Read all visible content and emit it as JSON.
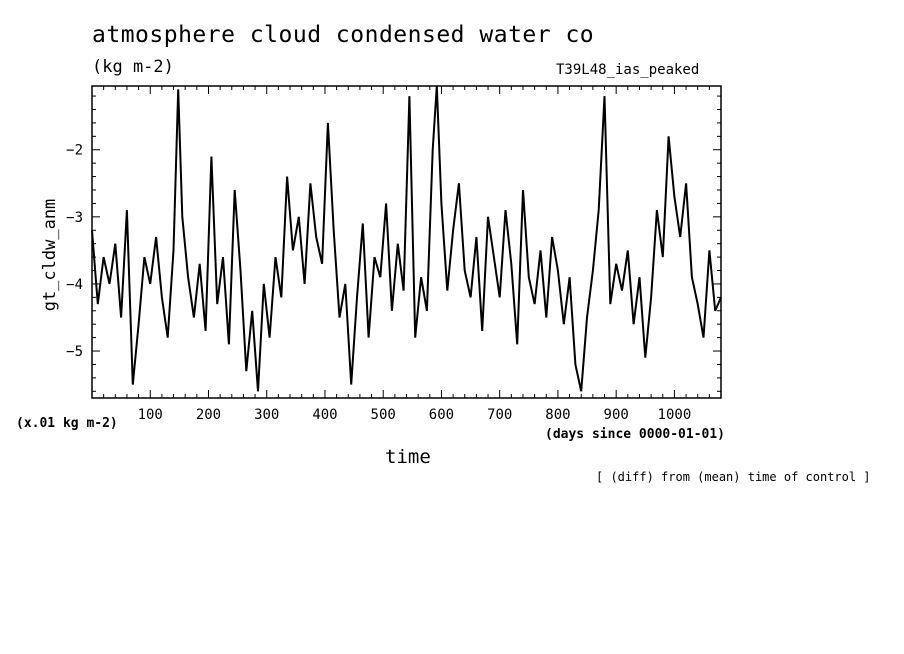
{
  "header": {
    "title": "atmosphere cloud condensed water co",
    "units": "(kg m-2)",
    "run_label": "T39L48_ias_peaked"
  },
  "axes": {
    "ylabel": "gt_cldw_anm",
    "scale_note": "(x.01 kg m-2)",
    "xlabel": "time",
    "x_units": "(days since 0000-01-01)"
  },
  "footer": {
    "note": "[ (diff) from (mean) time of control ]"
  },
  "chart_data": {
    "type": "line",
    "title": "atmosphere cloud condensed water co",
    "xlabel": "time",
    "ylabel": "gt_cldw_anm",
    "xlim": [
      0,
      1080
    ],
    "ylim": [
      -5.7,
      -1.05
    ],
    "xticks": [
      100,
      200,
      300,
      400,
      500,
      600,
      700,
      800,
      900,
      1000
    ],
    "yticks": [
      -5,
      -4,
      -3,
      -2
    ],
    "grid": false,
    "color": "#000000",
    "series": [
      {
        "x": [
          0,
          10,
          20,
          30,
          40,
          50,
          60,
          70,
          80,
          90,
          100,
          110,
          120,
          130,
          140,
          148,
          155,
          165,
          175,
          185,
          195,
          205,
          215,
          225,
          235,
          245,
          255,
          265,
          275,
          285,
          295,
          305,
          315,
          325,
          335,
          345,
          355,
          365,
          375,
          385,
          395,
          405,
          415,
          425,
          435,
          445,
          455,
          465,
          475,
          485,
          495,
          505,
          515,
          525,
          535,
          545,
          555,
          565,
          575,
          585,
          592,
          600,
          610,
          620,
          630,
          640,
          650,
          660,
          670,
          680,
          690,
          700,
          710,
          720,
          730,
          740,
          750,
          760,
          770,
          780,
          790,
          800,
          810,
          820,
          830,
          840,
          850,
          860,
          870,
          880,
          890,
          900,
          910,
          920,
          930,
          940,
          950,
          960,
          970,
          980,
          990,
          1000,
          1010,
          1020,
          1030,
          1040,
          1050,
          1060,
          1070,
          1080
        ],
        "values": [
          -3.2,
          -4.3,
          -3.6,
          -4.0,
          -3.4,
          -4.5,
          -2.9,
          -5.5,
          -4.6,
          -3.6,
          -4.0,
          -3.3,
          -4.2,
          -4.8,
          -3.5,
          -1.1,
          -3.0,
          -3.9,
          -4.5,
          -3.7,
          -4.7,
          -2.1,
          -4.3,
          -3.6,
          -4.9,
          -2.6,
          -3.8,
          -5.3,
          -4.4,
          -5.6,
          -4.0,
          -4.8,
          -3.6,
          -4.2,
          -2.4,
          -3.5,
          -3.0,
          -4.0,
          -2.5,
          -3.3,
          -3.7,
          -1.6,
          -3.2,
          -4.5,
          -4.0,
          -5.5,
          -4.2,
          -3.1,
          -4.8,
          -3.6,
          -3.9,
          -2.8,
          -4.4,
          -3.4,
          -4.1,
          -1.2,
          -4.8,
          -3.9,
          -4.4,
          -2.0,
          -1.0,
          -2.8,
          -4.1,
          -3.2,
          -2.5,
          -3.8,
          -4.2,
          -3.3,
          -4.7,
          -3.0,
          -3.6,
          -4.2,
          -2.9,
          -3.7,
          -4.9,
          -2.6,
          -3.9,
          -4.3,
          -3.5,
          -4.5,
          -3.3,
          -3.8,
          -4.6,
          -3.9,
          -5.2,
          -5.6,
          -4.5,
          -3.8,
          -2.9,
          -1.2,
          -4.3,
          -3.7,
          -4.1,
          -3.5,
          -4.6,
          -3.9,
          -5.1,
          -4.2,
          -2.9,
          -3.6,
          -1.8,
          -2.7,
          -3.3,
          -2.5,
          -3.9,
          -4.3,
          -4.8,
          -3.5,
          -4.4,
          -4.2
        ]
      }
    ]
  }
}
